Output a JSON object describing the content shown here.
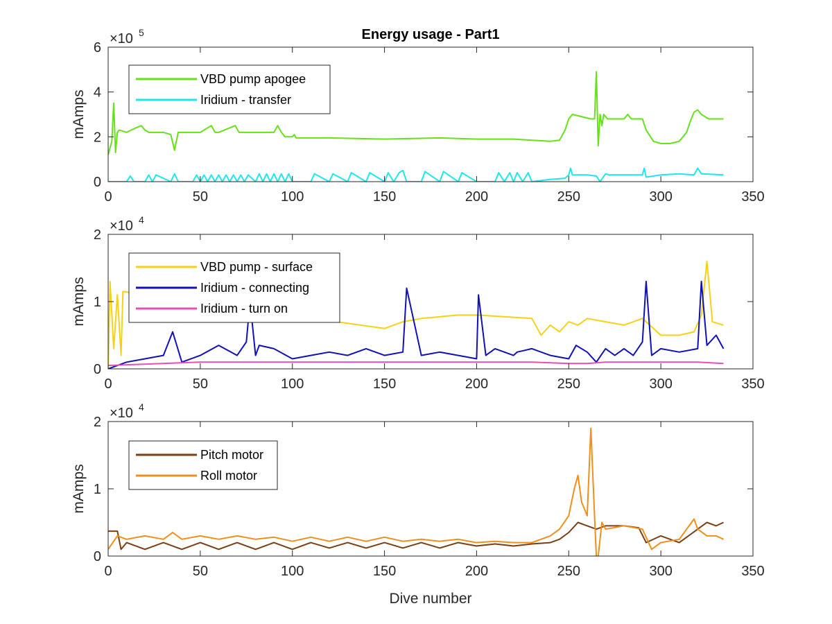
{
  "title": "Energy usage - Part1",
  "chart_data": [
    {
      "type": "line",
      "title": "Energy usage - Part1",
      "xlabel": "",
      "ylabel": "mAmps",
      "xlim": [
        0,
        350
      ],
      "ylim": [
        0,
        6
      ],
      "y_multiplier": "10^5",
      "y_multiplier_base": "×10",
      "y_multiplier_exp": "5",
      "xticks": [
        0,
        50,
        100,
        150,
        200,
        250,
        300,
        350
      ],
      "yticks": [
        0,
        2,
        4,
        6
      ],
      "legend": "top-left",
      "series": [
        {
          "name": "VBD pump apogee",
          "color": "#66e01a",
          "x": [
            0,
            2,
            3,
            4,
            5,
            6,
            10,
            15,
            18,
            20,
            22,
            25,
            30,
            34,
            36,
            38,
            40,
            50,
            56,
            58,
            60,
            69,
            71,
            80,
            90,
            92,
            94,
            96,
            100,
            101,
            102,
            120,
            150,
            180,
            200,
            220,
            230,
            240,
            245,
            248,
            250,
            252,
            262,
            264,
            265,
            266,
            267,
            268,
            269,
            271,
            273,
            280,
            282,
            284,
            290,
            292,
            296,
            300,
            305,
            310,
            314,
            316,
            318,
            320,
            322,
            326,
            334
          ],
          "y": [
            1.2,
            1.8,
            3.5,
            1.3,
            2.2,
            2.3,
            2.2,
            2.4,
            2.5,
            2.3,
            2.2,
            2.2,
            2.2,
            2.1,
            1.4,
            2.2,
            2.2,
            2.2,
            2.5,
            2.2,
            2.2,
            2.5,
            2.2,
            2.2,
            2.2,
            2.5,
            2.2,
            2.0,
            2.0,
            2.1,
            1.95,
            1.95,
            1.9,
            1.95,
            1.9,
            1.9,
            1.85,
            1.8,
            1.85,
            2.3,
            2.8,
            3.0,
            2.8,
            2.8,
            4.9,
            1.6,
            3.0,
            2.5,
            3.0,
            2.8,
            2.8,
            2.8,
            3.0,
            2.8,
            2.8,
            2.3,
            1.8,
            1.7,
            1.7,
            1.8,
            2.2,
            2.7,
            3.1,
            3.2,
            3.0,
            2.8,
            2.8
          ]
        },
        {
          "name": "Iridium - transfer",
          "color": "#1ee6ee",
          "x": [
            0,
            10,
            12,
            14,
            20,
            22,
            24,
            26,
            34,
            36,
            38,
            46,
            48,
            50,
            52,
            54,
            56,
            58,
            60,
            62,
            64,
            66,
            68,
            70,
            72,
            74,
            76,
            80,
            82,
            84,
            86,
            88,
            90,
            92,
            94,
            96,
            98,
            100,
            110,
            112,
            120,
            122,
            130,
            132,
            140,
            142,
            150,
            152,
            155,
            158,
            160,
            162,
            170,
            172,
            180,
            182,
            190,
            192,
            200,
            210,
            212,
            215,
            218,
            220,
            222,
            225,
            228,
            230,
            240,
            248,
            250,
            251,
            252,
            260,
            265,
            267,
            270,
            272,
            280,
            290,
            291,
            292,
            300,
            310,
            318,
            320,
            322,
            334
          ],
          "y": [
            0.0,
            0.0,
            0.25,
            0.0,
            0.0,
            0.3,
            0.0,
            0.3,
            0.0,
            0.35,
            0.0,
            0.0,
            0.3,
            0.0,
            0.3,
            0.0,
            0.3,
            0.0,
            0.3,
            0.0,
            0.3,
            0.0,
            0.3,
            0.0,
            0.3,
            0.0,
            0.3,
            0.0,
            0.35,
            0.0,
            0.35,
            0.0,
            0.35,
            0.0,
            0.35,
            0.0,
            0.35,
            0.0,
            0.0,
            0.35,
            0.0,
            0.35,
            0.0,
            0.4,
            0.0,
            0.4,
            0.0,
            0.4,
            0.0,
            0.4,
            0.5,
            0.0,
            0.0,
            0.45,
            0.0,
            0.45,
            0.0,
            0.4,
            0.0,
            0.0,
            0.4,
            0.0,
            0.4,
            0.0,
            0.4,
            0.0,
            0.4,
            0.0,
            0.1,
            0.15,
            0.3,
            0.6,
            0.3,
            0.3,
            0.25,
            0.0,
            0.35,
            0.3,
            0.3,
            0.3,
            0.6,
            0.2,
            0.3,
            0.35,
            0.3,
            0.6,
            0.35,
            0.3
          ]
        }
      ]
    },
    {
      "type": "line",
      "xlabel": "",
      "ylabel": "mAmps",
      "xlim": [
        0,
        350
      ],
      "ylim": [
        0,
        2
      ],
      "y_multiplier": "10^4",
      "y_multiplier_base": "×10",
      "y_multiplier_exp": "4",
      "xticks": [
        0,
        50,
        100,
        150,
        200,
        250,
        300,
        350
      ],
      "yticks": [
        0,
        1,
        2
      ],
      "legend": "top-left",
      "series": [
        {
          "name": "VBD pump - surface",
          "color": "#f7d117",
          "x": [
            0,
            1,
            3,
            5,
            7,
            8,
            150,
            160,
            170,
            190,
            200,
            230,
            235,
            240,
            245,
            250,
            255,
            260,
            270,
            280,
            290,
            300,
            310,
            318,
            322,
            325,
            328,
            334
          ],
          "y": [
            0.0,
            1.3,
            0.3,
            1.1,
            0.2,
            1.15,
            0.6,
            0.7,
            0.75,
            0.8,
            0.8,
            0.75,
            0.5,
            0.65,
            0.55,
            0.7,
            0.65,
            0.75,
            0.7,
            0.65,
            0.75,
            0.5,
            0.5,
            0.55,
            0.8,
            1.6,
            0.7,
            0.65
          ]
        },
        {
          "name": "Iridium - connecting",
          "color": "#1010b8",
          "x": [
            0,
            10,
            20,
            30,
            35,
            40,
            50,
            60,
            70,
            75,
            77,
            80,
            82,
            90,
            100,
            110,
            120,
            130,
            140,
            150,
            160,
            162,
            170,
            180,
            190,
            200,
            201,
            205,
            210,
            220,
            222,
            230,
            240,
            250,
            254,
            260,
            265,
            270,
            275,
            280,
            285,
            290,
            292,
            295,
            300,
            310,
            320,
            322,
            325,
            330,
            334
          ],
          "y": [
            0.0,
            0.1,
            0.15,
            0.2,
            0.55,
            0.1,
            0.2,
            0.35,
            0.2,
            0.4,
            1.0,
            0.2,
            0.35,
            0.3,
            0.15,
            0.2,
            0.25,
            0.2,
            0.3,
            0.2,
            0.25,
            1.2,
            0.2,
            0.25,
            0.2,
            0.15,
            1.1,
            0.2,
            0.3,
            0.2,
            0.25,
            0.3,
            0.2,
            0.15,
            0.35,
            0.25,
            0.1,
            0.3,
            0.2,
            0.3,
            0.2,
            0.4,
            1.3,
            0.2,
            0.3,
            0.25,
            0.3,
            1.3,
            0.35,
            0.5,
            0.3
          ]
        },
        {
          "name": "Iridium - turn on",
          "color": "#e84fb5",
          "x": [
            0,
            50,
            100,
            150,
            200,
            230,
            250,
            260,
            270,
            280,
            290,
            300,
            310,
            320,
            334
          ],
          "y": [
            0.05,
            0.1,
            0.1,
            0.1,
            0.1,
            0.1,
            0.08,
            0.08,
            0.1,
            0.1,
            0.1,
            0.1,
            0.1,
            0.1,
            0.08
          ]
        }
      ]
    },
    {
      "type": "line",
      "xlabel": "Dive number",
      "ylabel": "mAmps",
      "xlim": [
        0,
        350
      ],
      "ylim": [
        0,
        2
      ],
      "y_multiplier": "10^4",
      "y_multiplier_base": "×10",
      "y_multiplier_exp": "4",
      "xticks": [
        0,
        50,
        100,
        150,
        200,
        250,
        300,
        350
      ],
      "yticks": [
        0,
        1,
        2
      ],
      "legend": "top-left",
      "series": [
        {
          "name": "Pitch motor",
          "color": "#7b3d12",
          "x": [
            0,
            5,
            7,
            10,
            20,
            30,
            40,
            50,
            60,
            70,
            80,
            90,
            100,
            110,
            120,
            130,
            140,
            150,
            160,
            170,
            180,
            190,
            200,
            210,
            220,
            230,
            240,
            245,
            250,
            255,
            260,
            265,
            270,
            280,
            288,
            292,
            300,
            310,
            320,
            325,
            330,
            334
          ],
          "y": [
            0.37,
            0.37,
            0.1,
            0.2,
            0.1,
            0.2,
            0.1,
            0.2,
            0.1,
            0.2,
            0.1,
            0.2,
            0.1,
            0.2,
            0.12,
            0.2,
            0.12,
            0.2,
            0.12,
            0.2,
            0.12,
            0.2,
            0.15,
            0.18,
            0.15,
            0.18,
            0.2,
            0.25,
            0.35,
            0.5,
            0.45,
            0.4,
            0.45,
            0.45,
            0.42,
            0.2,
            0.3,
            0.2,
            0.4,
            0.5,
            0.45,
            0.5
          ]
        },
        {
          "name": "Roll motor",
          "color": "#ee8f1a",
          "x": [
            0,
            5,
            10,
            20,
            30,
            35,
            40,
            50,
            60,
            70,
            80,
            90,
            100,
            110,
            120,
            130,
            140,
            150,
            160,
            170,
            180,
            190,
            200,
            210,
            220,
            230,
            240,
            245,
            250,
            253,
            255,
            257,
            260,
            262,
            264,
            265,
            266,
            268,
            270,
            280,
            290,
            295,
            300,
            310,
            318,
            320,
            325,
            330,
            334
          ],
          "y": [
            0.1,
            0.3,
            0.25,
            0.3,
            0.25,
            0.35,
            0.25,
            0.3,
            0.25,
            0.3,
            0.25,
            0.28,
            0.22,
            0.28,
            0.22,
            0.28,
            0.22,
            0.28,
            0.22,
            0.25,
            0.22,
            0.25,
            0.2,
            0.22,
            0.2,
            0.2,
            0.3,
            0.4,
            0.6,
            1.0,
            1.2,
            0.8,
            0.6,
            1.9,
            0.6,
            0.0,
            0.0,
            0.5,
            0.4,
            0.45,
            0.4,
            0.1,
            0.2,
            0.25,
            0.55,
            0.4,
            0.3,
            0.3,
            0.25
          ]
        }
      ]
    }
  ]
}
